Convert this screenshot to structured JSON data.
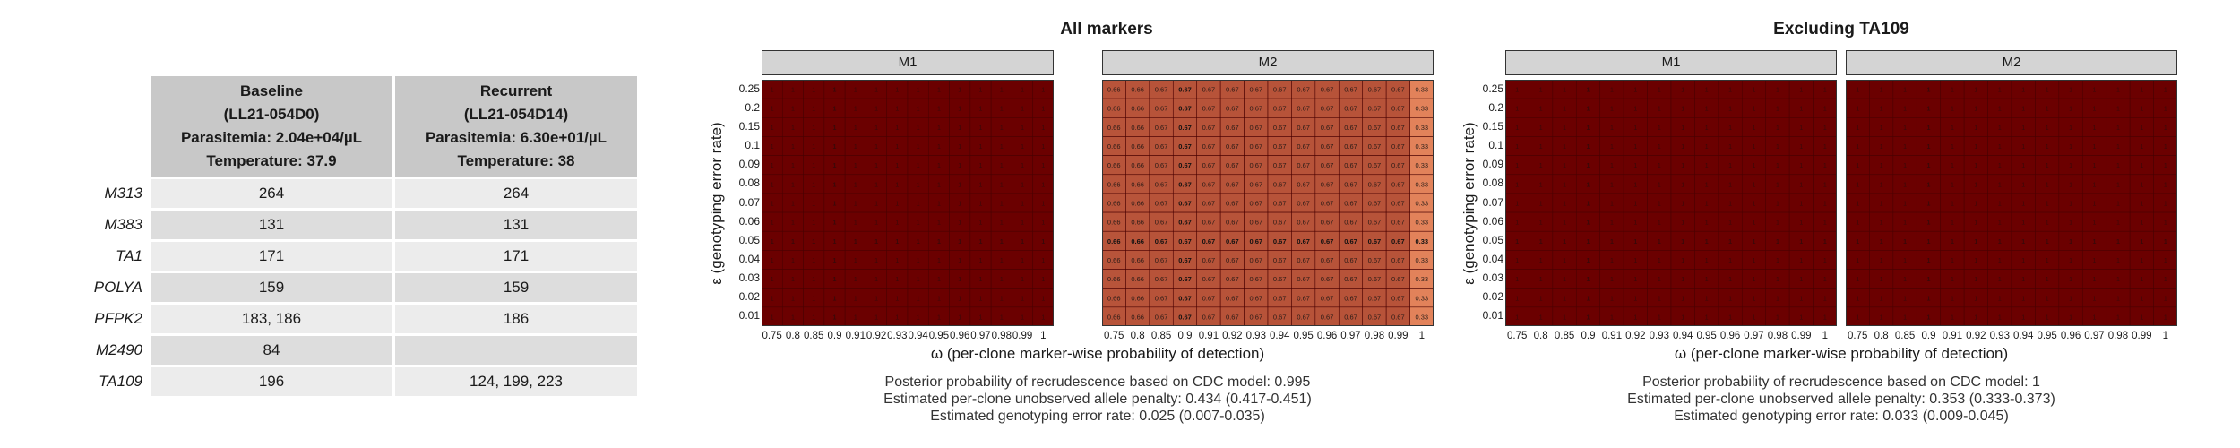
{
  "table": {
    "headers": [
      {
        "lines": [
          "Baseline",
          "(LL21-054D0)",
          "Parasitemia: 2.04e+04/µL",
          "Temperature: 37.9"
        ]
      },
      {
        "lines": [
          "Recurrent",
          "(LL21-054D14)",
          "Parasitemia: 6.30e+01/µL",
          "Temperature: 38"
        ]
      }
    ],
    "rows": [
      {
        "marker": "M313",
        "baseline": "264",
        "recurrent": "264"
      },
      {
        "marker": "M383",
        "baseline": "131",
        "recurrent": "131"
      },
      {
        "marker": "TA1",
        "baseline": "171",
        "recurrent": "171"
      },
      {
        "marker": "POLYA",
        "baseline": "159",
        "recurrent": "159"
      },
      {
        "marker": "PFPK2",
        "baseline": "183, 186",
        "recurrent": "186"
      },
      {
        "marker": "M2490",
        "baseline": "84",
        "recurrent": ""
      },
      {
        "marker": "TA109",
        "baseline": "196",
        "recurrent": "124, 199, 223"
      }
    ]
  },
  "colors": {
    "dark_red": "#6b0000",
    "mid_red": "#cc5533",
    "gray_strip": "#d4d4d4"
  },
  "chart_data": [
    {
      "type": "heatmap",
      "title": "All markers",
      "xlabel": "ω (per-clone marker-wise probability of detection)",
      "ylabel": "ε (genotyping error rate)",
      "x": [
        "0.75",
        "0.8",
        "0.85",
        "0.9",
        "0.91",
        "0.92",
        "0.93",
        "0.94",
        "0.95",
        "0.96",
        "0.97",
        "0.98",
        "0.99",
        "1"
      ],
      "y": [
        "0.25",
        "0.2",
        "0.15",
        "0.1",
        "0.09",
        "0.08",
        "0.07",
        "0.06",
        "0.05",
        "0.04",
        "0.03",
        "0.02",
        "0.01"
      ],
      "highlight_x": "0.9",
      "highlight_y": "0.05",
      "panels": [
        {
          "name": "M1",
          "cell_label": "1",
          "cell_values": [
            1,
            1,
            1,
            1,
            1,
            1,
            1,
            1,
            1,
            1,
            1,
            1,
            1,
            1
          ]
        },
        {
          "name": "M2",
          "cell_labels": [
            "0.66",
            "0.66",
            "0.67",
            "0.67",
            "0.67",
            "0.67",
            "0.67",
            "0.67",
            "0.67",
            "0.67",
            "0.67",
            "0.67",
            "0.67",
            "0.33"
          ],
          "cell_values": [
            0.66,
            0.66,
            0.67,
            0.67,
            0.67,
            0.67,
            0.67,
            0.67,
            0.67,
            0.67,
            0.67,
            0.67,
            0.67,
            0.33
          ]
        }
      ],
      "summary": [
        "Posterior probability of recrudescence based on CDC model: 0.995",
        "Estimated per-clone unobserved allele penalty: 0.434 (0.417-0.451)",
        "Estimated genotyping error rate: 0.025 (0.007-0.035)"
      ]
    },
    {
      "type": "heatmap",
      "title": "Excluding TA109",
      "xlabel": "ω (per-clone marker-wise probability of detection)",
      "ylabel": "ε (genotyping error rate)",
      "x": [
        "0.75",
        "0.8",
        "0.85",
        "0.9",
        "0.91",
        "0.92",
        "0.93",
        "0.94",
        "0.95",
        "0.96",
        "0.97",
        "0.98",
        "0.99",
        "1"
      ],
      "y": [
        "0.25",
        "0.2",
        "0.15",
        "0.1",
        "0.09",
        "0.08",
        "0.07",
        "0.06",
        "0.05",
        "0.04",
        "0.03",
        "0.02",
        "0.01"
      ],
      "highlight_x": "0.9",
      "highlight_y": "0.05",
      "panels": [
        {
          "name": "M1",
          "cell_label": "1",
          "cell_values": [
            1,
            1,
            1,
            1,
            1,
            1,
            1,
            1,
            1,
            1,
            1,
            1,
            1,
            1
          ]
        },
        {
          "name": "M2",
          "cell_label": "1",
          "cell_values": [
            1,
            1,
            1,
            1,
            1,
            1,
            1,
            1,
            1,
            1,
            1,
            1,
            1,
            1
          ]
        }
      ],
      "summary": [
        "Posterior probability of recrudescence based on CDC model: 1",
        "Estimated per-clone unobserved allele penalty: 0.353 (0.333-0.373)",
        "Estimated genotyping error rate: 0.033 (0.009-0.045)"
      ]
    }
  ]
}
